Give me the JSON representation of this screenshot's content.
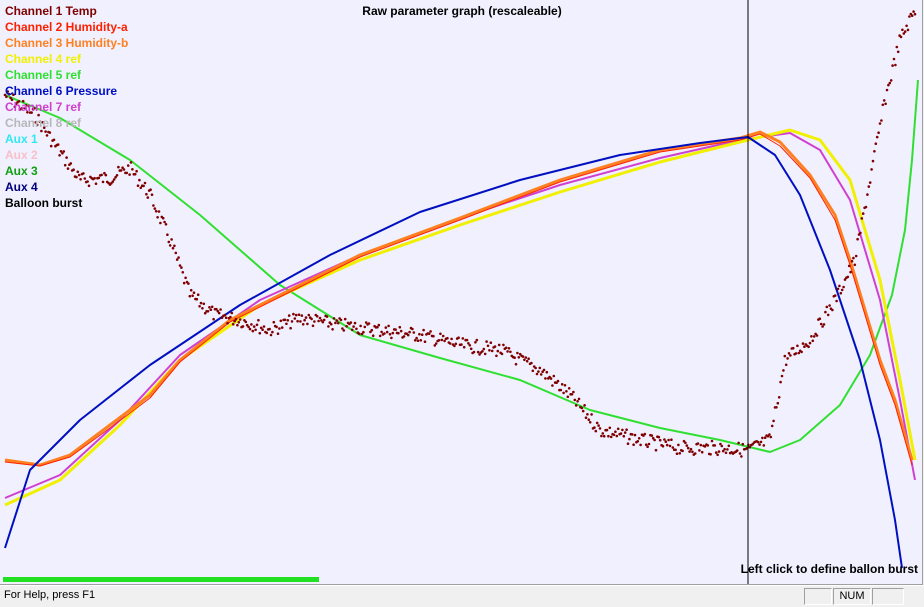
{
  "graph": {
    "title": "Raw parameter graph (rescaleable)",
    "hint": "Left click to define ballon burst"
  },
  "legend": [
    {
      "label": "Channel 1 Temp",
      "color": "#800000"
    },
    {
      "label": "Channel 2 Humidity-a",
      "color": "#ff2000"
    },
    {
      "label": "Channel 3 Humidity-b",
      "color": "#ff8020"
    },
    {
      "label": "Channel 4 ref",
      "color": "#f0f000"
    },
    {
      "label": "Channel 5 ref",
      "color": "#30e030"
    },
    {
      "label": "Channel 6 Pressure",
      "color": "#0010c0"
    },
    {
      "label": "Channel 7 ref",
      "color": "#d040d0"
    },
    {
      "label": "Channel 8 ref",
      "color": "#b8b8b8"
    },
    {
      "label": "Aux 1",
      "color": "#30e8f0"
    },
    {
      "label": "Aux 2",
      "color": "#f8c0c8"
    },
    {
      "label": "Aux 3",
      "color": "#10a010"
    },
    {
      "label": "Aux 4",
      "color": "#000080"
    },
    {
      "label": "Balloon burst",
      "color": "#000000"
    }
  ],
  "status_bar": {
    "help_text": "For Help, press F1",
    "num_indicator": "NUM"
  },
  "colors": {
    "background": "#f0f0ff",
    "progress": "#22e022"
  }
}
